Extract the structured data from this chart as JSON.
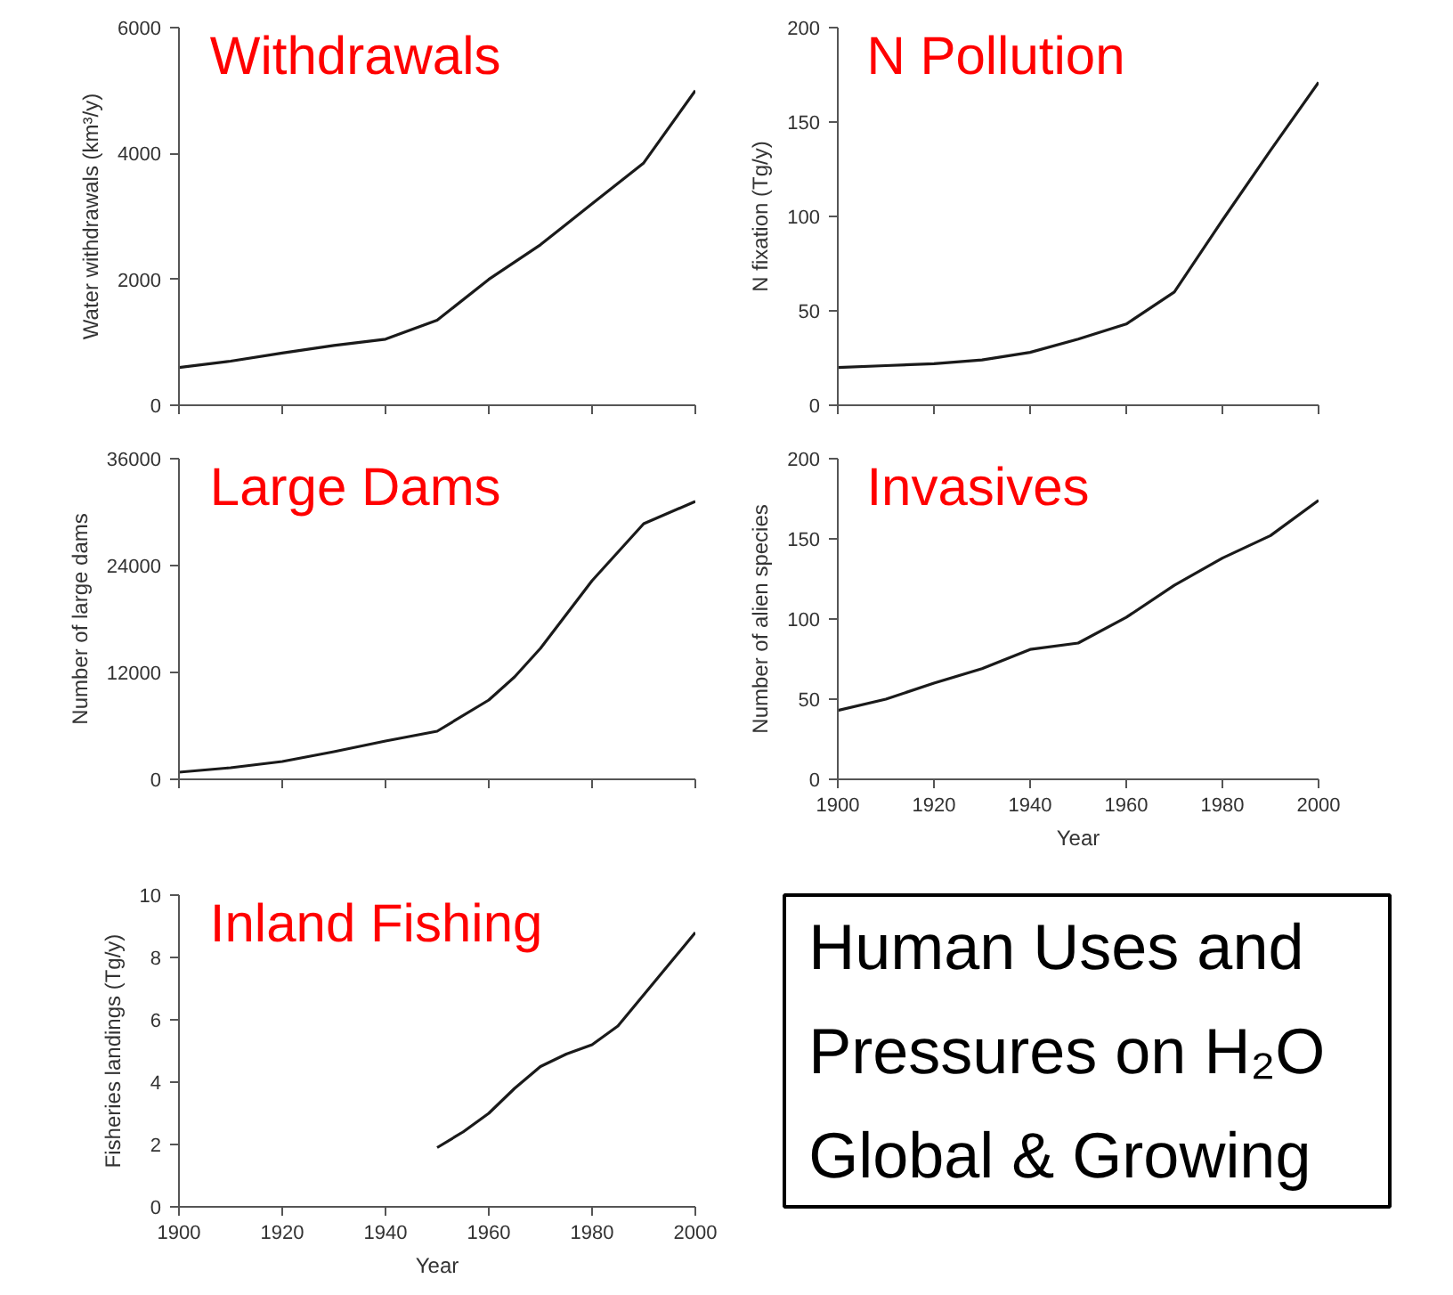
{
  "chart_data": [
    {
      "type": "line",
      "title": "Withdrawals",
      "ylabel": "Water withdrawals (km³/y)",
      "x": [
        1900,
        1910,
        1920,
        1930,
        1940,
        1950,
        1960,
        1970,
        1980,
        1990,
        2000
      ],
      "xlim": [
        1900,
        2000
      ],
      "xticks": [
        {
          "value": 1900,
          "label": null
        },
        {
          "value": 1920,
          "label": null
        },
        {
          "value": 1940,
          "label": null
        },
        {
          "value": 1960,
          "label": null
        },
        {
          "value": 1980,
          "label": null
        },
        {
          "value": 2000,
          "label": null
        }
      ],
      "ylim": [
        0,
        6000
      ],
      "yticks": [
        0,
        2000,
        4000,
        6000
      ],
      "tick_labels": "y",
      "series": [
        {
          "color": "#1a1a1a",
          "values": [
            600,
            700,
            830,
            950,
            1050,
            1350,
            2000,
            2550,
            3200,
            3850,
            5000
          ]
        }
      ]
    },
    {
      "type": "line",
      "title": "N Pollution",
      "ylabel": "N fixation (Tg/y)",
      "x": [
        1900,
        1910,
        1920,
        1930,
        1940,
        1950,
        1960,
        1970,
        1980,
        1990,
        2000
      ],
      "xlim": [
        1900,
        2000
      ],
      "xticks": [
        {
          "value": 1900,
          "label": null
        },
        {
          "value": 1920,
          "label": null
        },
        {
          "value": 1940,
          "label": null
        },
        {
          "value": 1960,
          "label": null
        },
        {
          "value": 1980,
          "label": null
        },
        {
          "value": 2000,
          "label": null
        }
      ],
      "ylim": [
        0,
        200
      ],
      "yticks": [
        0,
        50,
        100,
        150,
        200
      ],
      "tick_labels": "y",
      "series": [
        {
          "color": "#1a1a1a",
          "values": [
            20,
            21,
            22,
            24,
            28,
            35,
            43,
            60,
            98,
            135,
            171
          ]
        }
      ]
    },
    {
      "type": "line",
      "title": "Large Dams",
      "ylabel": "Number of large dams",
      "x": [
        1900,
        1910,
        1920,
        1930,
        1940,
        1950,
        1960,
        1965,
        1970,
        1975,
        1980,
        1990,
        2000
      ],
      "xlim": [
        1900,
        2000
      ],
      "xticks": [
        {
          "value": 1900,
          "label": null
        },
        {
          "value": 1920,
          "label": null
        },
        {
          "value": 1940,
          "label": null
        },
        {
          "value": 1960,
          "label": null
        },
        {
          "value": 1980,
          "label": null
        },
        {
          "value": 2000,
          "label": null
        }
      ],
      "ylim": [
        0,
        36000
      ],
      "yticks": [
        0,
        12000,
        24000,
        36000
      ],
      "tick_labels": "y",
      "series": [
        {
          "color": "#1a1a1a",
          "values": [
            800,
            1300,
            2000,
            3100,
            4300,
            5400,
            8900,
            11500,
            14700,
            18500,
            22300,
            28700,
            31200
          ]
        }
      ]
    },
    {
      "type": "line",
      "title": "Invasives",
      "ylabel": "Number of alien species",
      "xlabel": "Year",
      "x": [
        1900,
        1910,
        1920,
        1930,
        1940,
        1950,
        1960,
        1970,
        1980,
        1990,
        2000
      ],
      "xlim": [
        1900,
        2000
      ],
      "xticks": [
        1900,
        1920,
        1940,
        1960,
        1980,
        2000
      ],
      "ylim": [
        0,
        200
      ],
      "yticks": [
        0,
        50,
        100,
        150,
        200
      ],
      "series": [
        {
          "color": "#1a1a1a",
          "values": [
            43,
            50,
            60,
            69,
            81,
            85,
            101,
            121,
            138,
            152,
            174
          ]
        }
      ]
    },
    {
      "type": "line",
      "title": "Inland Fishing",
      "ylabel": "Fisheries landings (Tg/y)",
      "xlabel": "Year",
      "xlim": [
        1900,
        2000
      ],
      "xticks": [
        1900,
        1920,
        1940,
        1960,
        1980,
        2000
      ],
      "ylim": [
        0,
        10
      ],
      "yticks": [
        0,
        2,
        4,
        6,
        8,
        10
      ],
      "series": [
        {
          "color": "#1a1a1a",
          "x": [
            1950,
            1955,
            1960,
            1965,
            1970,
            1975,
            1980,
            1985,
            1990,
            1995,
            2000
          ],
          "values": [
            1.9,
            2.4,
            3.0,
            3.8,
            4.5,
            4.9,
            5.2,
            5.8,
            6.8,
            7.8,
            8.8
          ]
        }
      ]
    },
    {
      "type": "other",
      "annotations": [
        "Human Uses and",
        "Pressures on H₂O",
        "Global & Growing"
      ]
    }
  ]
}
